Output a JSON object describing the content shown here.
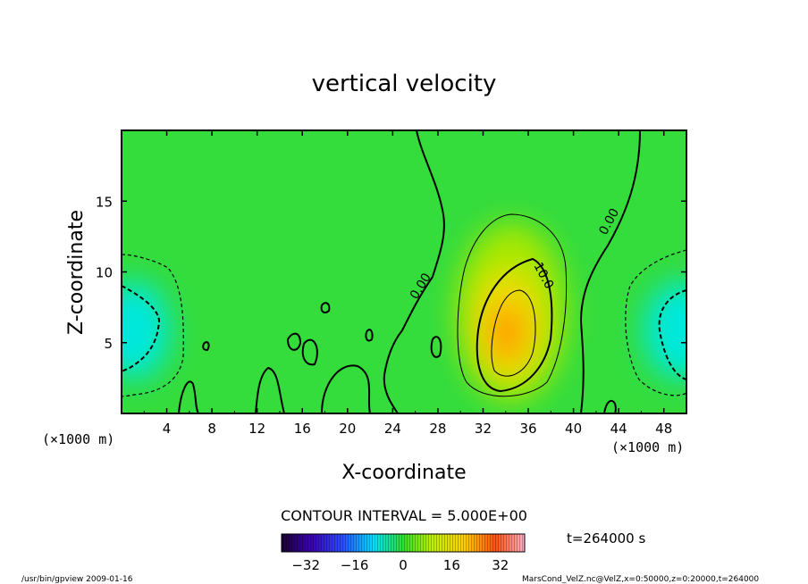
{
  "chart_data": {
    "type": "heatmap",
    "title": "vertical velocity",
    "xlabel": "X-coordinate",
    "ylabel": "Z-coordinate",
    "x_unit_left": "(×1000 m)",
    "x_unit_right": "(×1000 m)",
    "xlim": [
      0,
      50
    ],
    "ylim": [
      0,
      20
    ],
    "x_ticks": [
      "4",
      "8",
      "12",
      "16",
      "20",
      "24",
      "28",
      "32",
      "36",
      "40",
      "44",
      "48"
    ],
    "y_ticks": [
      "5",
      "10",
      "15"
    ],
    "contour_interval_text": "CONTOUR INTERVAL = 5.000E+00",
    "contour_labels": [
      {
        "text": "0.00",
        "x": 26.0,
        "z": 9.0
      },
      {
        "text": "10.0",
        "x": 37.0,
        "z": 9.5
      },
      {
        "text": "0.00",
        "x": 44.0,
        "z": 13.2
      }
    ],
    "colorbar": {
      "range": [
        -40,
        40
      ],
      "ticks": [
        "−32",
        "−16",
        "0",
        "16",
        "32"
      ]
    },
    "time_text": "t=264000 s",
    "footer_left": "/usr/bin/gpview   2009-01-16",
    "footer_right": "MarsCond_VelZ.nc@VelZ,x=0:50000,z=0:20000,t=264000",
    "features": [
      {
        "name": "updraft",
        "x": 33.5,
        "z": 5.5,
        "peak": 27
      },
      {
        "name": "downdraft-left",
        "x": 0.5,
        "z": 6.0,
        "peak": -15
      },
      {
        "name": "downdraft-right",
        "x": 49.7,
        "z": 6.0,
        "peak": -14
      }
    ]
  }
}
